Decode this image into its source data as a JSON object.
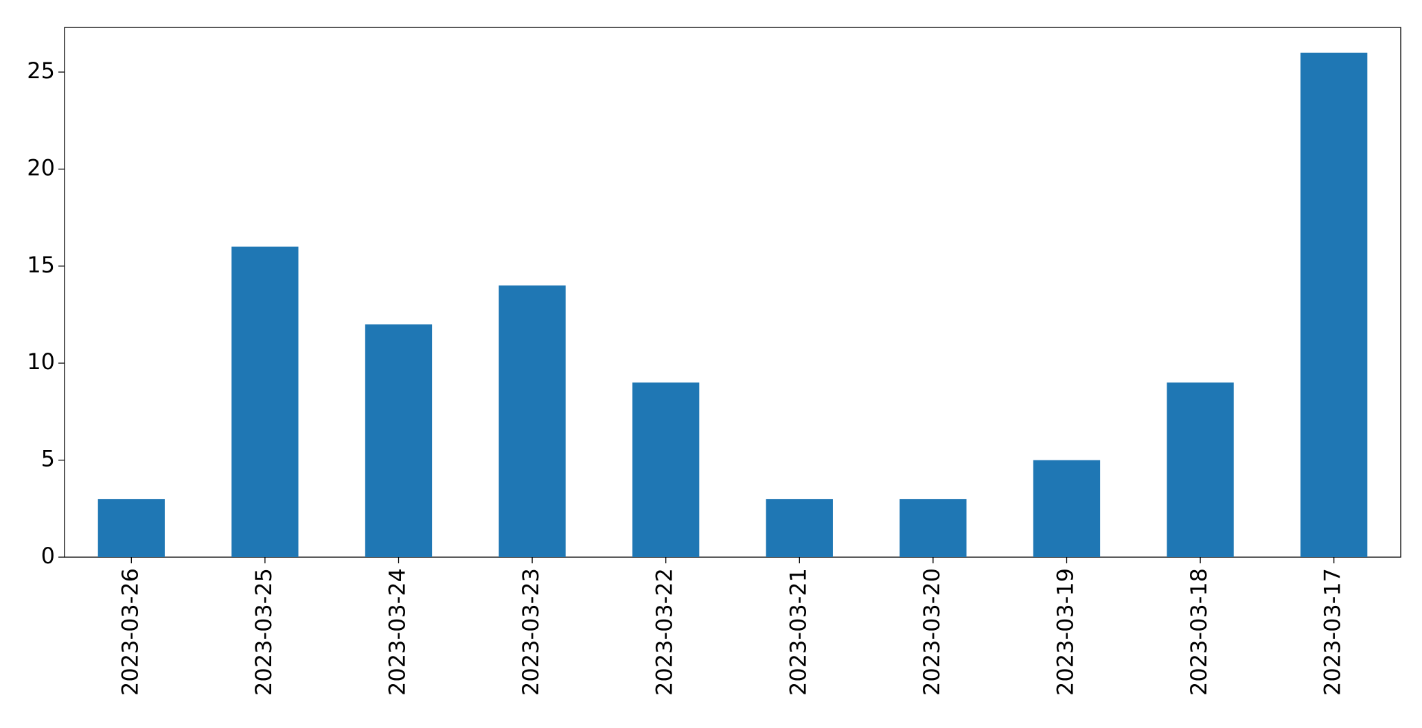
{
  "chart_data": {
    "type": "bar",
    "categories": [
      "2023-03-26",
      "2023-03-25",
      "2023-03-24",
      "2023-03-23",
      "2023-03-22",
      "2023-03-21",
      "2023-03-20",
      "2023-03-19",
      "2023-03-18",
      "2023-03-17"
    ],
    "values": [
      3,
      16,
      12,
      14,
      9,
      3,
      3,
      5,
      9,
      26
    ],
    "color": "#1f77b4",
    "ylim": [
      0,
      27.3
    ],
    "yticks": [
      0,
      5,
      10,
      15,
      20,
      25
    ],
    "grid": false
  }
}
